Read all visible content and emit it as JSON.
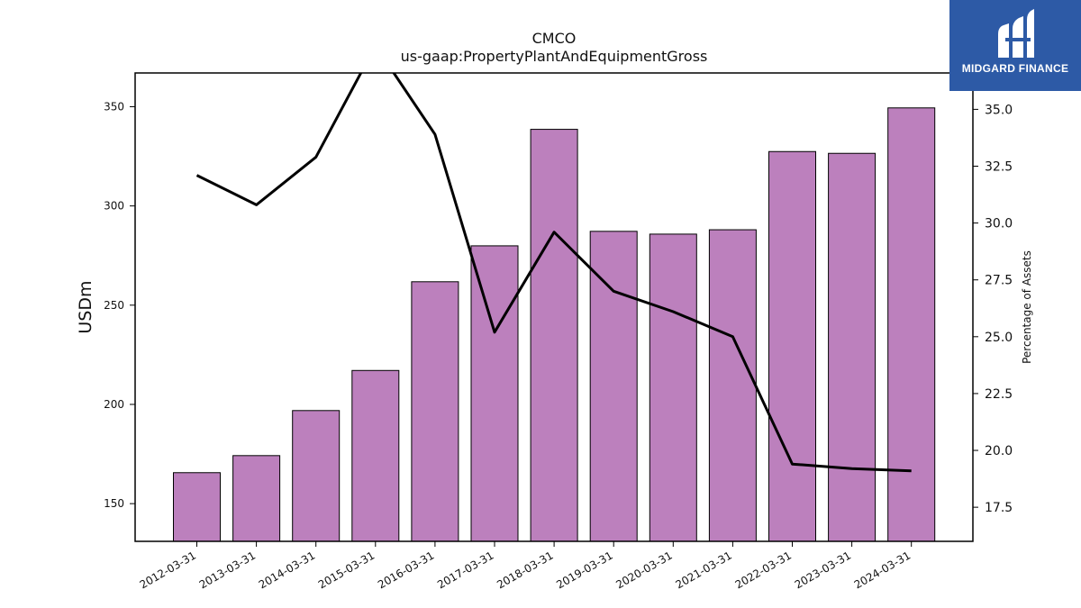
{
  "chart_data": {
    "type": "bar",
    "title": "CMCO",
    "subtitle": "us-gaap:PropertyPlantAndEquipmentGross",
    "ylabel": "USDm",
    "y2label": "Percentage of Assets",
    "categories": [
      "2012-03-31",
      "2013-03-31",
      "2014-03-31",
      "2015-03-31",
      "2016-03-31",
      "2017-03-31",
      "2018-03-31",
      "2019-03-31",
      "2020-03-31",
      "2021-03-31",
      "2022-03-31",
      "2023-03-31",
      "2024-03-31"
    ],
    "series": [
      {
        "type": "bar",
        "axis": "left",
        "color": "#bc80bd",
        "values": [
          165.6,
          174.2,
          196.9,
          217.1,
          261.8,
          279.9,
          338.6,
          287.2,
          285.8,
          288.0,
          327.4,
          326.5,
          349.4
        ]
      },
      {
        "type": "line",
        "axis": "right",
        "color": "#000000",
        "values": [
          32.1,
          30.8,
          32.9,
          37.8,
          33.9,
          25.2,
          29.6,
          27.0,
          26.1,
          25.0,
          19.4,
          19.2,
          19.1
        ]
      }
    ],
    "ylim": [
      131,
      367
    ],
    "y2lim": [
      16,
      36.6
    ],
    "yticks": [
      150,
      200,
      250,
      300,
      350
    ],
    "y2ticks": [
      "17.5",
      "20.0",
      "22.5",
      "25.0",
      "27.5",
      "30.0",
      "32.5",
      "35.0"
    ],
    "grid": false
  },
  "logo": {
    "text": "MIDGARD FINANCE"
  }
}
